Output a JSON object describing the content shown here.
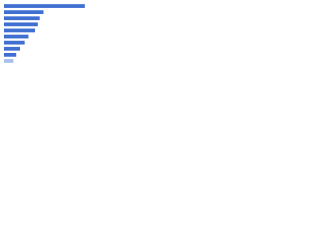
{
  "chart_data": {
    "type": "bar",
    "orientation": "horizontal",
    "categories": [
      null,
      null,
      null,
      null,
      null,
      null,
      null,
      null,
      null,
      null
    ],
    "values": [
      86,
      42,
      38,
      36,
      33,
      26,
      22,
      17,
      13,
      10
    ],
    "colors": [
      "#3f6fd1",
      "#3f6fd1",
      "#3f6fd1",
      "#3f6fd1",
      "#3f6fd1",
      "#3f6fd1",
      "#3f6fd1",
      "#3f6fd1",
      "#3f6fd1",
      "#a9c0ec"
    ],
    "xlim": [
      0,
      100
    ]
  }
}
